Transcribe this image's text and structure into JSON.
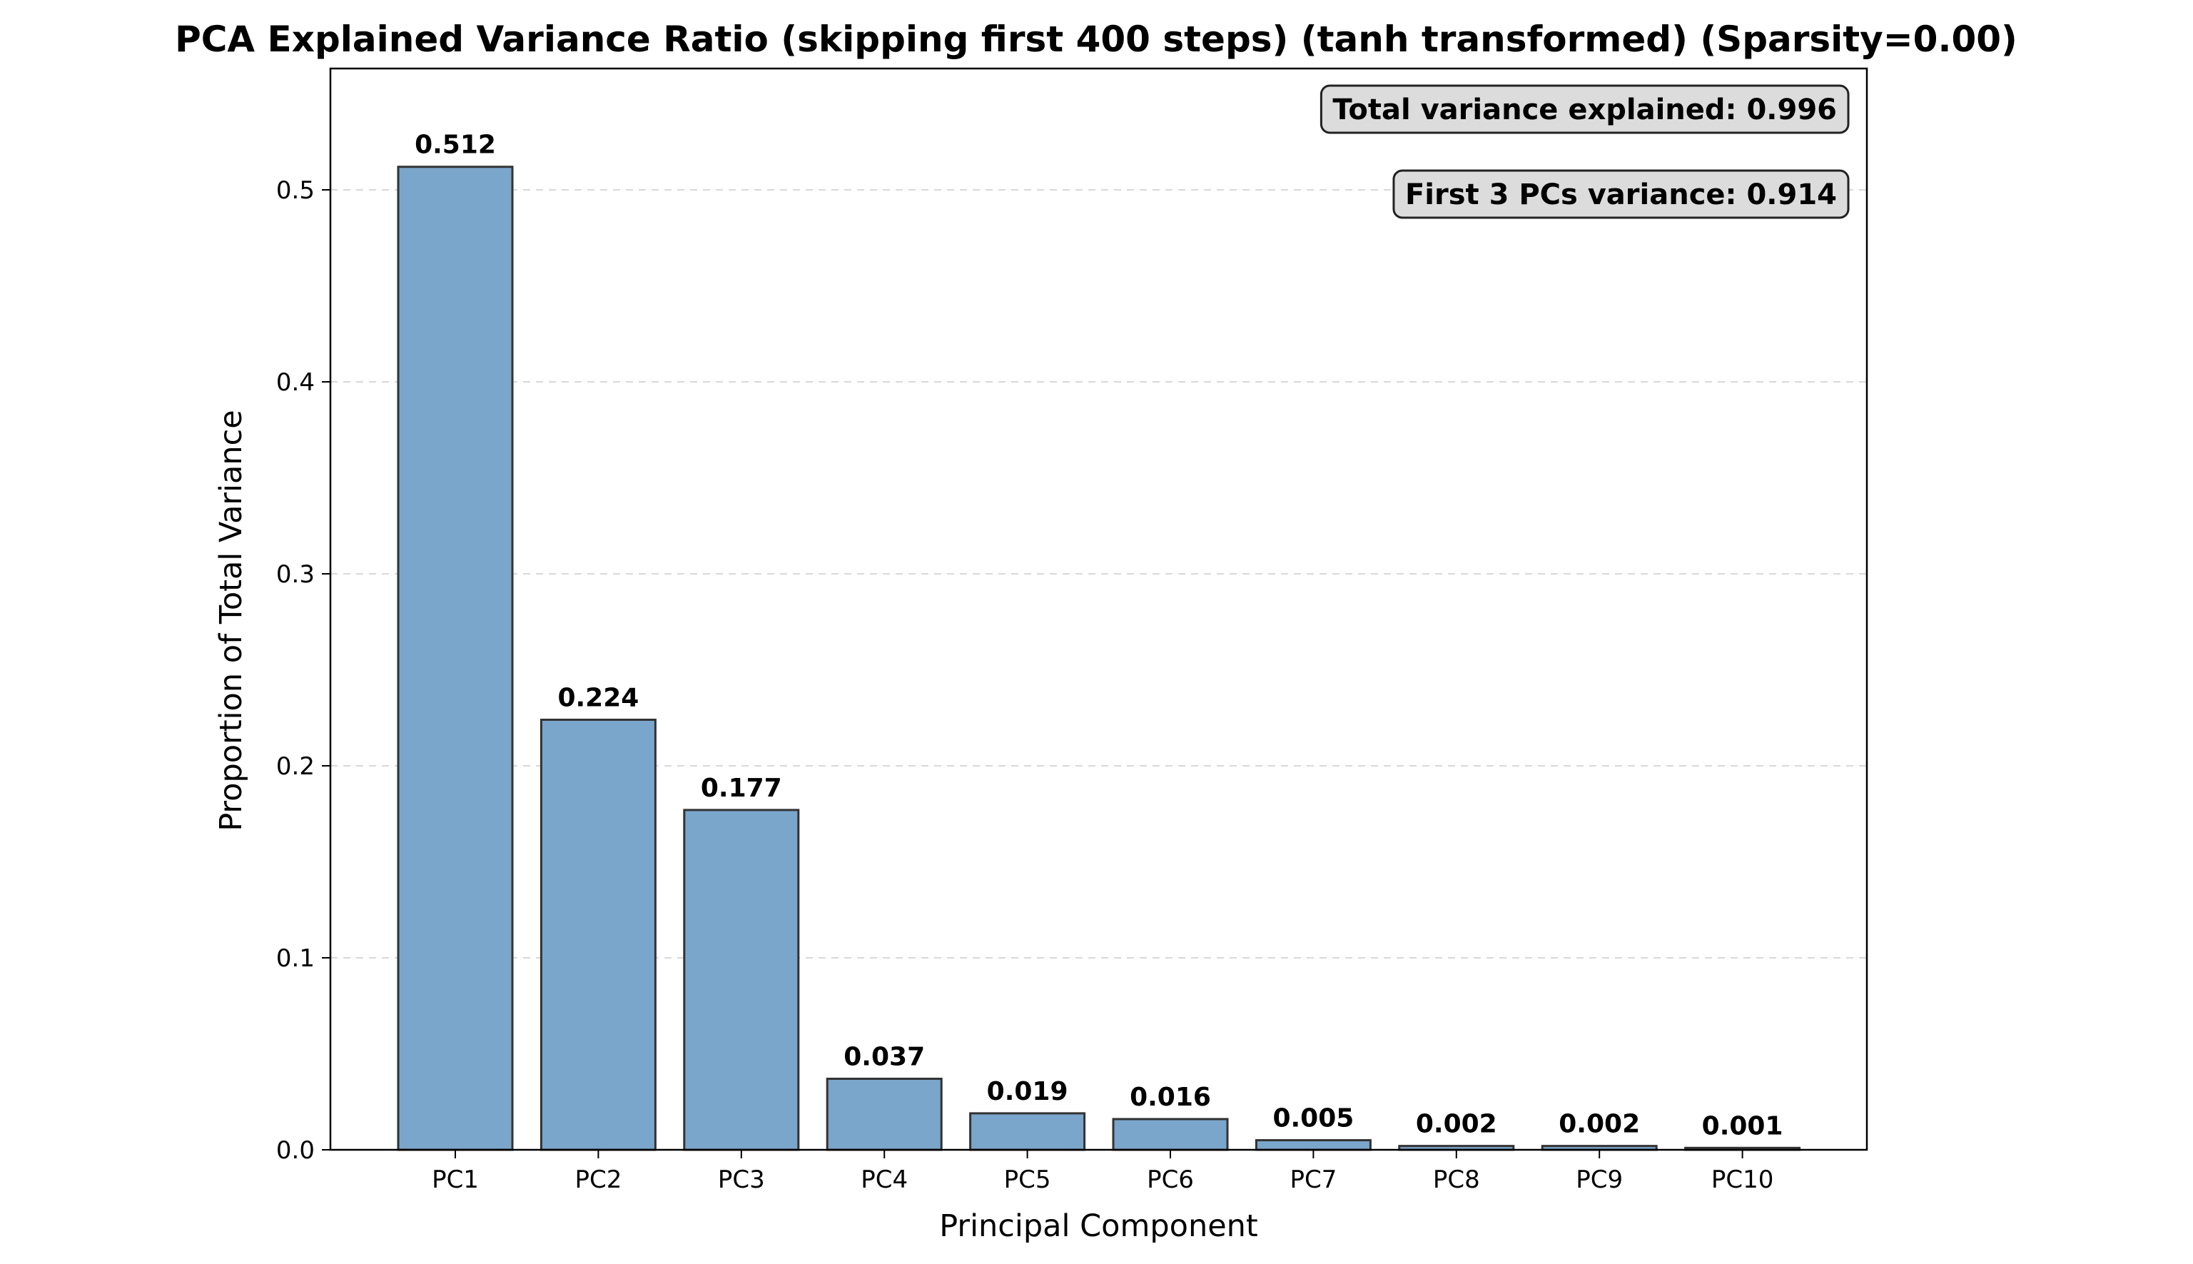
{
  "chart_data": {
    "type": "bar",
    "title": "PCA Explained Variance Ratio (skipping first 400 steps) (tanh transformed) (Sparsity=0.00)",
    "xlabel": "Principal Component",
    "ylabel": "Proportion of Total Variance",
    "categories": [
      "PC1",
      "PC2",
      "PC3",
      "PC4",
      "PC5",
      "PC6",
      "PC7",
      "PC8",
      "PC9",
      "PC10"
    ],
    "values": [
      0.512,
      0.224,
      0.177,
      0.037,
      0.019,
      0.016,
      0.005,
      0.002,
      0.002,
      0.001
    ],
    "value_labels": [
      "0.512",
      "0.224",
      "0.177",
      "0.037",
      "0.019",
      "0.016",
      "0.005",
      "0.002",
      "0.002",
      "0.001"
    ],
    "ylim": [
      0,
      0.5632
    ],
    "yticks": [
      0.0,
      0.1,
      0.2,
      0.3,
      0.4,
      0.5
    ],
    "ytick_labels": [
      "0.0",
      "0.1",
      "0.2",
      "0.3",
      "0.4",
      "0.5"
    ],
    "grid": "y-dashed",
    "bar_color": "#7BA6CB",
    "bar_edge_color": "#333333",
    "annotations": [
      "Total variance explained: 0.996",
      "First 3 PCs variance: 0.914"
    ],
    "annotation_box_color": "#DCDCDC"
  }
}
